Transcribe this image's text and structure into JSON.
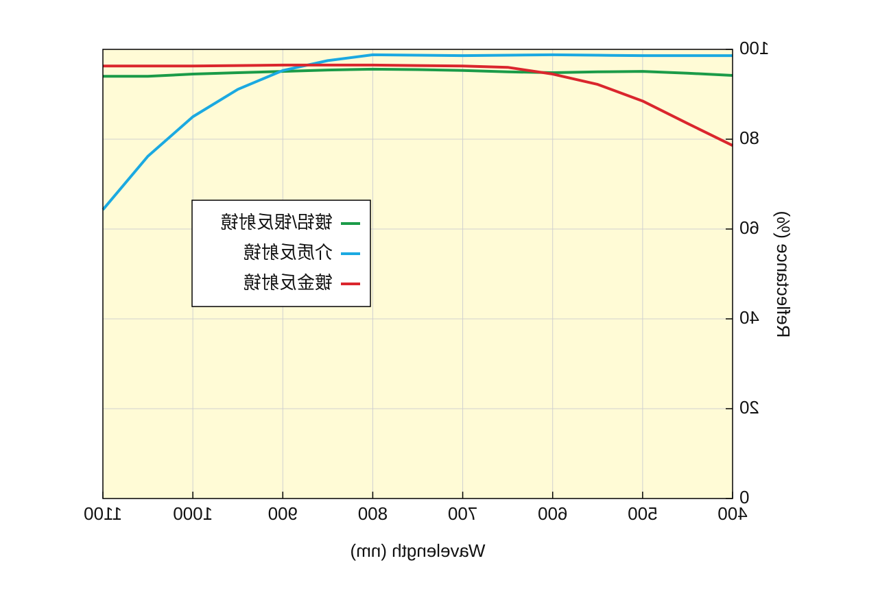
{
  "chart_data": {
    "type": "line",
    "x_label": "Wavelength (nm)",
    "y_label": "Reflectance (%)",
    "x": [
      400,
      450,
      500,
      550,
      600,
      650,
      700,
      750,
      800,
      850,
      900,
      950,
      1000,
      1050,
      1100
    ],
    "series": [
      {
        "name": "镀铝/银反射镜",
        "color": "#1b9b48",
        "values": [
          94.2,
          94.7,
          95.1,
          95.0,
          94.8,
          95.0,
          95.3,
          95.5,
          95.6,
          95.4,
          95.1,
          94.8,
          94.5,
          94.0,
          94.0
        ]
      },
      {
        "name": "介质反射镜",
        "color": "#1ba9e1",
        "values": [
          98.6,
          98.6,
          98.6,
          98.7,
          98.8,
          98.7,
          98.6,
          98.7,
          98.8,
          97.5,
          95.3,
          91.1,
          85.0,
          76.2,
          64.3
        ]
      },
      {
        "name": "镀金反射镜",
        "color": "#da262d",
        "values": [
          78.6,
          83.5,
          88.5,
          92.2,
          94.5,
          96.0,
          96.3,
          96.4,
          96.5,
          96.5,
          96.5,
          96.4,
          96.3,
          96.3,
          96.3
        ]
      }
    ],
    "xlim": [
      400,
      1100
    ],
    "xticks": [
      400,
      500,
      600,
      700,
      800,
      900,
      1000,
      1100
    ],
    "ylim": [
      0,
      100
    ],
    "yticks": [
      0,
      20,
      40,
      60,
      80,
      100
    ],
    "grid": true
  }
}
